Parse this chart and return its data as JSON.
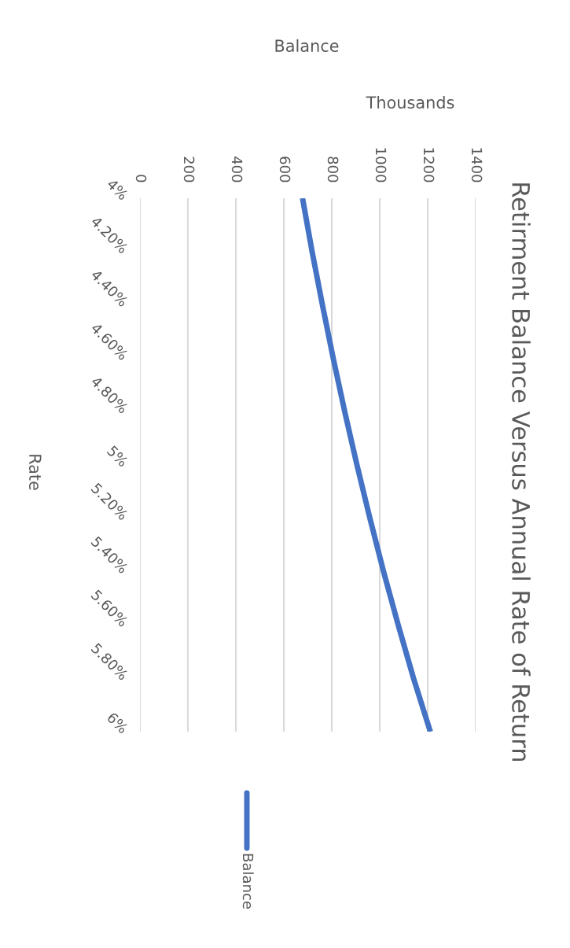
{
  "chart_data": {
    "type": "line",
    "orientation": "horizontal",
    "title": "Retirment Balance Versus Annual Rate of Return",
    "annotations": [
      "Balance"
    ],
    "x2label": "Thousands",
    "ylabel": "Rate",
    "categories": [
      "4%",
      "4.20%",
      "4.40%",
      "4.60%",
      "4.80%",
      "5%",
      "5.20%",
      "5.40%",
      "5.60%",
      "5.80%",
      "6%"
    ],
    "series": [
      {
        "name": "Balance",
        "color": "#4472c4",
        "values": [
          678,
          718,
          761,
          806,
          854,
          905,
          959,
          1016,
          1077,
          1141,
          1211
        ]
      }
    ],
    "xlim": [
      0,
      1400
    ],
    "xticks": [
      0,
      200,
      400,
      600,
      800,
      1000,
      1200,
      1400
    ],
    "grid": "x",
    "legend": "bottom",
    "marker": "none",
    "line_style": "solid"
  }
}
